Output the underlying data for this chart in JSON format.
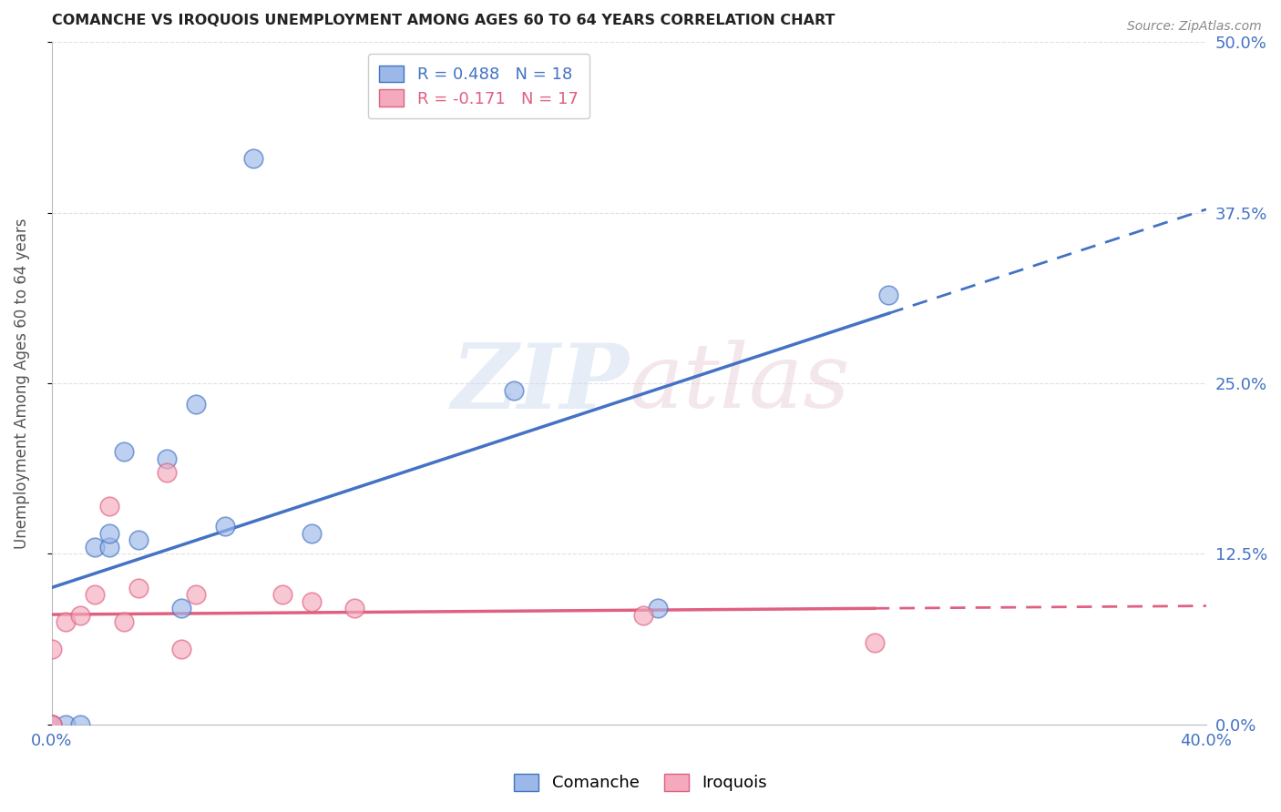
{
  "title": "COMANCHE VS IROQUOIS UNEMPLOYMENT AMONG AGES 60 TO 64 YEARS CORRELATION CHART",
  "source": "Source: ZipAtlas.com",
  "ylabel": "Unemployment Among Ages 60 to 64 years",
  "xlim": [
    0.0,
    0.4
  ],
  "ylim": [
    0.0,
    0.5
  ],
  "xticks": [
    0.0,
    0.1,
    0.2,
    0.3,
    0.4
  ],
  "xtick_labels": [
    "0.0%",
    "",
    "",
    "",
    "40.0%"
  ],
  "ytick_labels": [
    "0.0%",
    "12.5%",
    "25.0%",
    "37.5%",
    "50.0%"
  ],
  "yticks": [
    0.0,
    0.125,
    0.25,
    0.375,
    0.5
  ],
  "comanche_R": 0.488,
  "comanche_N": 18,
  "iroquois_R": -0.171,
  "iroquois_N": 17,
  "comanche_color": "#9BB8E8",
  "iroquois_color": "#F4AABC",
  "comanche_line_color": "#4472C4",
  "iroquois_line_color": "#E06080",
  "comanche_x": [
    0.0,
    0.0,
    0.005,
    0.01,
    0.015,
    0.02,
    0.02,
    0.025,
    0.03,
    0.04,
    0.045,
    0.05,
    0.06,
    0.07,
    0.09,
    0.16,
    0.21,
    0.29
  ],
  "comanche_y": [
    0.0,
    0.0,
    0.0,
    0.0,
    0.13,
    0.13,
    0.14,
    0.2,
    0.135,
    0.195,
    0.085,
    0.235,
    0.145,
    0.415,
    0.14,
    0.245,
    0.085,
    0.315
  ],
  "iroquois_x": [
    0.0,
    0.0,
    0.0,
    0.005,
    0.01,
    0.015,
    0.02,
    0.025,
    0.03,
    0.04,
    0.045,
    0.05,
    0.08,
    0.09,
    0.105,
    0.205,
    0.285
  ],
  "iroquois_y": [
    0.0,
    0.0,
    0.055,
    0.075,
    0.08,
    0.095,
    0.16,
    0.075,
    0.1,
    0.185,
    0.055,
    0.095,
    0.095,
    0.09,
    0.085,
    0.08,
    0.06
  ],
  "watermark_zip": "ZIP",
  "watermark_atlas": "atlas",
  "background_color": "#FFFFFF",
  "grid_color": "#E0E0E0"
}
